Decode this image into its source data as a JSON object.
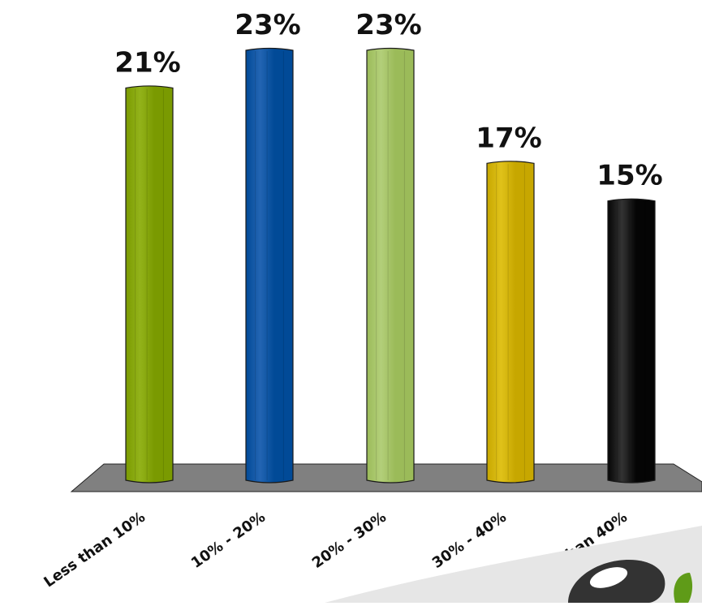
{
  "chart_data": {
    "type": "bar",
    "categories": [
      "Less than 10%",
      "10% - 20%",
      "20% - 30%",
      "30% - 40%",
      "More than 40%"
    ],
    "values": [
      21,
      23,
      23,
      17,
      15
    ],
    "data_labels": [
      "21%",
      "23%",
      "23%",
      "17%",
      "15%"
    ],
    "unit": "%",
    "title": "",
    "xlabel": "",
    "ylabel": "",
    "ylim": [
      0,
      23
    ],
    "grid": false,
    "legend": "none",
    "colors": [
      "#7a9a01",
      "#014a97",
      "#9bbb59",
      "#c7a700",
      "#050505"
    ],
    "highlight_colors": [
      "#93b31a",
      "#2365b3",
      "#b3cf7a",
      "#e0c21a",
      "#333333"
    ],
    "floor_color": "#808080",
    "logo_swoosh_color": "#e6e6e6",
    "logo_dark_color": "#333333",
    "logo_green_color": "#5f9b18"
  }
}
